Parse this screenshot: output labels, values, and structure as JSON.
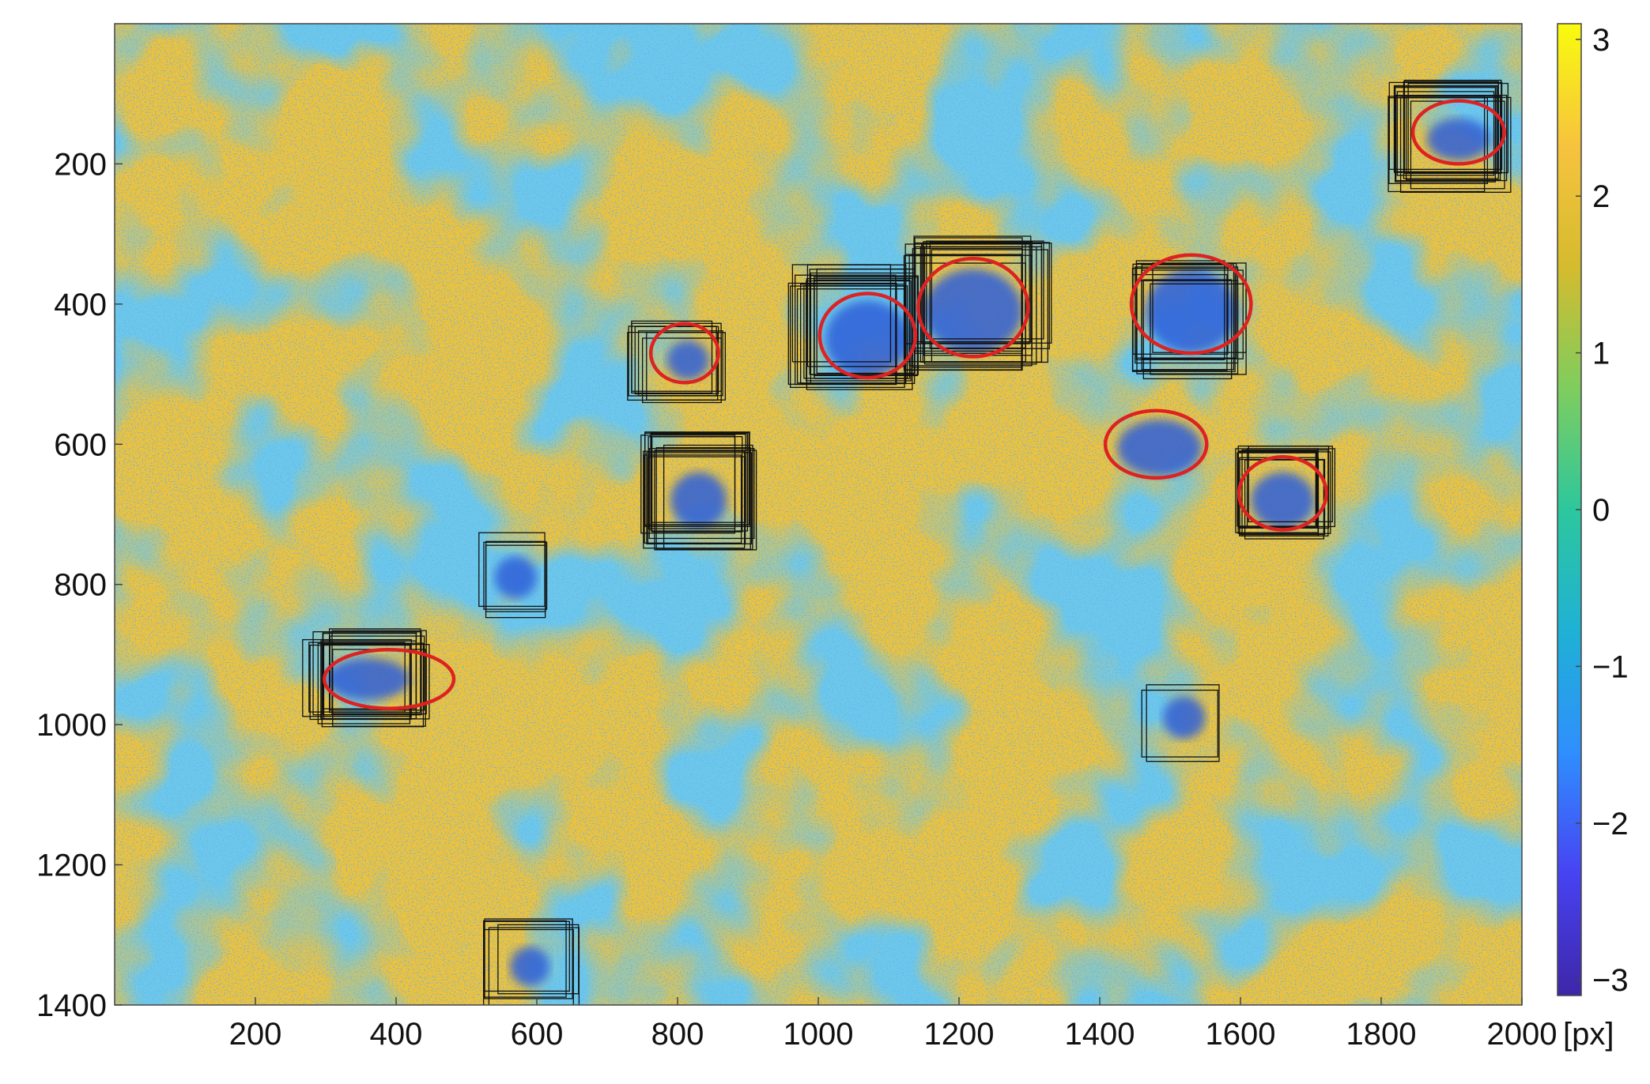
{
  "chart_data": {
    "type": "heatmap",
    "title": "",
    "x_unit_label": "[px]",
    "x_ticks": [
      200,
      400,
      600,
      800,
      1000,
      1200,
      1400,
      1600,
      1800,
      2000
    ],
    "y_ticks": [
      200,
      400,
      600,
      800,
      1000,
      1200,
      1400
    ],
    "xlim": [
      0,
      2000
    ],
    "ylim": [
      0,
      1400
    ],
    "y_direction": "reversed",
    "colorbar": {
      "range": [
        -3.1,
        3.1
      ],
      "ticks": [
        3,
        2,
        1,
        0,
        -1,
        -2,
        -3
      ],
      "tick_labels": [
        "3",
        "2",
        "1",
        "0",
        "−1",
        "−2",
        "−3"
      ],
      "colormap": "parula",
      "colormap_stops": [
        "#3e26a8",
        "#4743f2",
        "#2f8ffe",
        "#1fb1d5",
        "#2dc79d",
        "#7fcd5e",
        "#d5bb2e",
        "#f7c33e",
        "#f9fb0e"
      ]
    },
    "background_colors": {
      "dominant": "#f0c238",
      "secondary": "#3a9fd6"
    },
    "detections": {
      "ellipse_color": "#dd2222",
      "box_color": "#111111",
      "ellipses": [
        {
          "cx": 1910,
          "cy": 155,
          "rx": 65,
          "ry": 45
        },
        {
          "cx": 1220,
          "cy": 405,
          "rx": 78,
          "ry": 70
        },
        {
          "cx": 1070,
          "cy": 445,
          "rx": 68,
          "ry": 60
        },
        {
          "cx": 1530,
          "cy": 400,
          "rx": 85,
          "ry": 70
        },
        {
          "cx": 810,
          "cy": 470,
          "rx": 48,
          "ry": 42
        },
        {
          "cx": 1480,
          "cy": 600,
          "rx": 72,
          "ry": 48
        },
        {
          "cx": 1660,
          "cy": 670,
          "rx": 62,
          "ry": 52
        },
        {
          "cx": 390,
          "cy": 935,
          "rx": 92,
          "ry": 42
        }
      ],
      "box_clusters": [
        {
          "cx": 1895,
          "cy": 160,
          "w": 160,
          "h": 140,
          "n": 14
        },
        {
          "cx": 1225,
          "cy": 395,
          "w": 185,
          "h": 170,
          "n": 18
        },
        {
          "cx": 1050,
          "cy": 430,
          "w": 165,
          "h": 160,
          "n": 16
        },
        {
          "cx": 1530,
          "cy": 420,
          "w": 150,
          "h": 150,
          "n": 12
        },
        {
          "cx": 805,
          "cy": 485,
          "w": 130,
          "h": 105,
          "n": 8
        },
        {
          "cx": 830,
          "cy": 665,
          "w": 150,
          "h": 150,
          "n": 16
        },
        {
          "cx": 1665,
          "cy": 670,
          "w": 135,
          "h": 125,
          "n": 12
        },
        {
          "cx": 560,
          "cy": 790,
          "w": 95,
          "h": 110,
          "n": 4
        },
        {
          "cx": 360,
          "cy": 935,
          "w": 155,
          "h": 120,
          "n": 14
        },
        {
          "cx": 1510,
          "cy": 995,
          "w": 110,
          "h": 110,
          "n": 2
        },
        {
          "cx": 595,
          "cy": 1340,
          "w": 130,
          "h": 115,
          "n": 6
        }
      ],
      "blue_blobs": [
        {
          "cx": 1910,
          "cy": 165,
          "rx": 45,
          "ry": 30
        },
        {
          "cx": 1220,
          "cy": 410,
          "rx": 70,
          "ry": 60
        },
        {
          "cx": 1070,
          "cy": 450,
          "rx": 60,
          "ry": 55
        },
        {
          "cx": 1530,
          "cy": 410,
          "rx": 65,
          "ry": 60
        },
        {
          "cx": 815,
          "cy": 480,
          "rx": 30,
          "ry": 28
        },
        {
          "cx": 1485,
          "cy": 605,
          "rx": 60,
          "ry": 40
        },
        {
          "cx": 1660,
          "cy": 680,
          "rx": 45,
          "ry": 40
        },
        {
          "cx": 830,
          "cy": 680,
          "rx": 40,
          "ry": 40
        },
        {
          "cx": 570,
          "cy": 790,
          "rx": 30,
          "ry": 30
        },
        {
          "cx": 360,
          "cy": 935,
          "rx": 60,
          "ry": 30
        },
        {
          "cx": 1520,
          "cy": 990,
          "rx": 30,
          "ry": 30
        },
        {
          "cx": 590,
          "cy": 1345,
          "rx": 28,
          "ry": 28
        }
      ]
    }
  }
}
